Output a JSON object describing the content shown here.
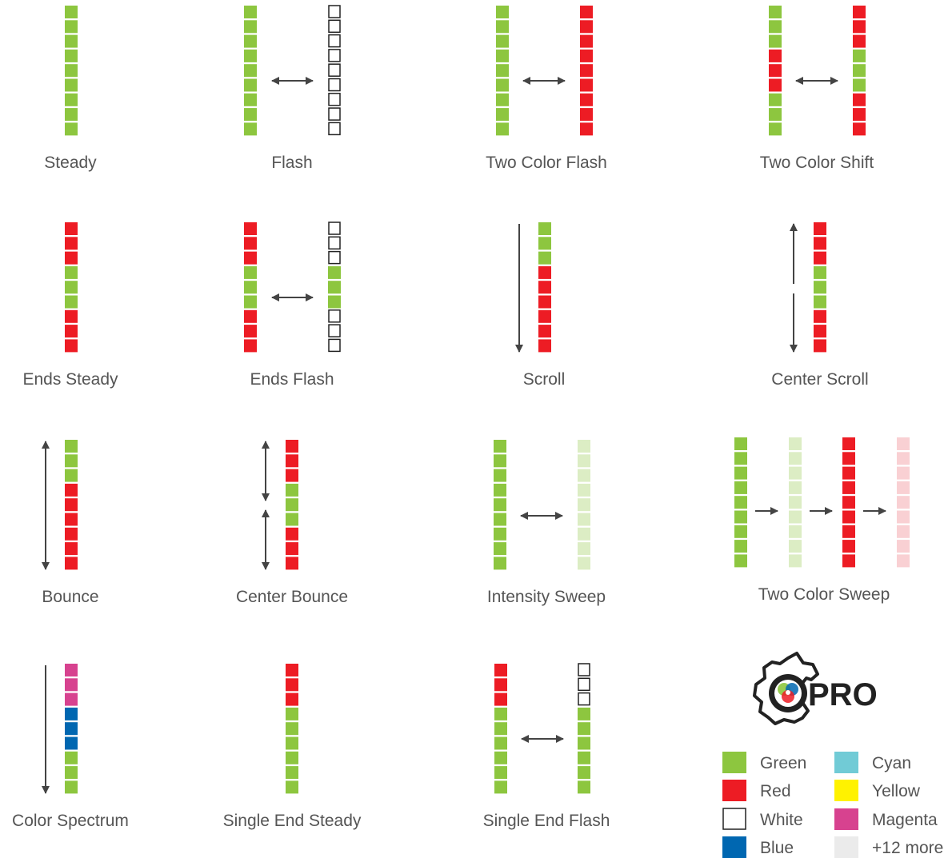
{
  "colors": {
    "green": "#8dc63f",
    "red": "#ed1c24",
    "white": "#ffffff",
    "blue": "#0067b1",
    "magenta": "#d7428f",
    "light_green": "#dcedc4",
    "light_red": "#f9d0d3",
    "cyan": "#71cbd6",
    "yellow": "#fff200",
    "light_gray": "#ebebeb",
    "arrow": "#444444",
    "outline": "#222222"
  },
  "patterns": [
    {
      "id": "steady",
      "label": "Steady"
    },
    {
      "id": "flash",
      "label": "Flash"
    },
    {
      "id": "two-color-flash",
      "label": "Two Color Flash"
    },
    {
      "id": "two-color-shift",
      "label": "Two Color Shift"
    },
    {
      "id": "ends-steady",
      "label": "Ends Steady"
    },
    {
      "id": "ends-flash",
      "label": "Ends Flash"
    },
    {
      "id": "scroll",
      "label": "Scroll"
    },
    {
      "id": "center-scroll",
      "label": "Center Scroll"
    },
    {
      "id": "bounce",
      "label": "Bounce"
    },
    {
      "id": "center-bounce",
      "label": "Center Bounce"
    },
    {
      "id": "intensity-sweep",
      "label": "Intensity Sweep"
    },
    {
      "id": "two-color-sweep",
      "label": "Two Color Sweep"
    },
    {
      "id": "color-spectrum",
      "label": "Color Spectrum"
    },
    {
      "id": "single-end-steady",
      "label": "Single End Steady"
    },
    {
      "id": "single-end-flash",
      "label": "Single End Flash"
    }
  ],
  "logo": {
    "text": "PRO"
  },
  "legend": [
    {
      "label": "Green",
      "color": "#8dc63f"
    },
    {
      "label": "Red",
      "color": "#ed1c24"
    },
    {
      "label": "White",
      "color": "#ffffff"
    },
    {
      "label": "Blue",
      "color": "#0067b1"
    },
    {
      "label": "Cyan",
      "color": "#71cbd6"
    },
    {
      "label": "Yellow",
      "color": "#fff200"
    },
    {
      "label": "Magenta",
      "color": "#d7428f"
    },
    {
      "label": "+12 more",
      "color": "#ebebeb"
    }
  ]
}
